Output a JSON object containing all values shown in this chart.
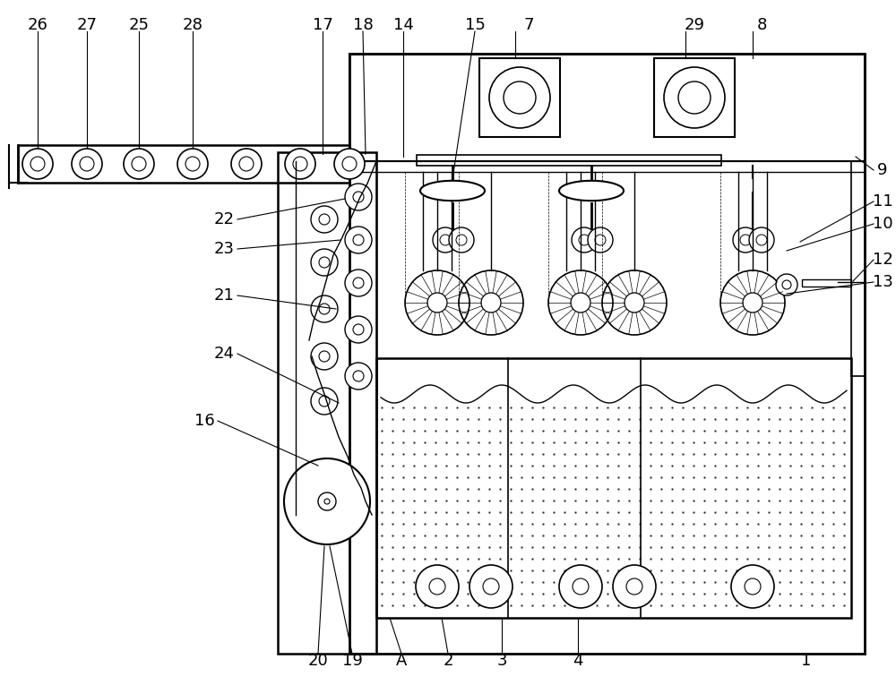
{
  "bg_color": "#ffffff",
  "lc": "#000000",
  "fig_w": 10.0,
  "fig_h": 7.65,
  "dpi": 100,
  "label_fontsize": 13
}
